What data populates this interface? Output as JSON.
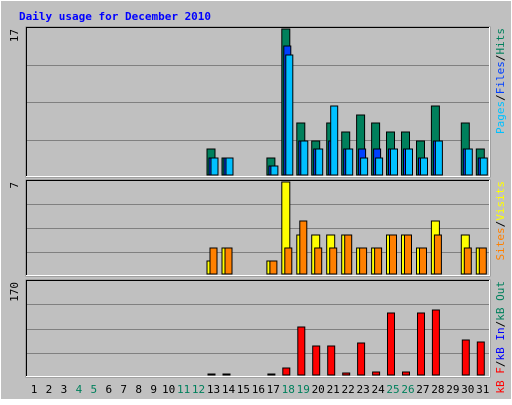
{
  "chart_data": {
    "type": "bar",
    "title": "Daily usage for December 2010",
    "categories": [
      "1",
      "2",
      "3",
      "4",
      "5",
      "6",
      "7",
      "8",
      "9",
      "10",
      "11",
      "12",
      "13",
      "14",
      "15",
      "16",
      "17",
      "18",
      "19",
      "20",
      "21",
      "22",
      "23",
      "24",
      "25",
      "26",
      "27",
      "28",
      "29",
      "30",
      "31"
    ],
    "weekend_days": [
      4,
      5,
      11,
      12,
      18,
      19,
      25,
      26
    ],
    "colors": {
      "background": "#C0C0C0",
      "grid": "#808080",
      "title": "#0000FF",
      "hits": "#00805C",
      "files": "#0040FF",
      "pages": "#00C0FF",
      "visits": "#FFFF00",
      "sites": "#FF8000",
      "kb_in": "#0000FF",
      "kb_out": "#00805C",
      "kb_f": "#FF0000",
      "weekend_label": "#00805C",
      "weekday_label": "#000000"
    },
    "panels": [
      {
        "id": "hits-files-pages",
        "ymax": 17,
        "ymax_label": "17",
        "legend": [
          {
            "text": "Pages",
            "color": "#00C0FF"
          },
          {
            "text": "/",
            "color": "#000000"
          },
          {
            "text": "Files",
            "color": "#0040FF"
          },
          {
            "text": "/",
            "color": "#000000"
          },
          {
            "text": "Hits",
            "color": "#00805C"
          }
        ],
        "series": [
          {
            "name": "Hits",
            "color": "#00805C",
            "values": [
              0,
              0,
              0,
              0,
              0,
              0,
              0,
              0,
              0,
              0,
              0,
              0,
              3,
              2,
              0,
              0,
              2,
              17,
              6,
              4,
              6,
              5,
              7,
              6,
              5,
              5,
              4,
              8,
              0,
              6,
              3
            ]
          },
          {
            "name": "Files",
            "color": "#0040FF",
            "values": [
              0,
              0,
              0,
              0,
              0,
              0,
              0,
              0,
              0,
              0,
              0,
              0,
              2,
              2,
              0,
              0,
              1,
              15,
              4,
              3,
              4,
              3,
              3,
              3,
              3,
              3,
              2,
              4,
              0,
              3,
              2
            ]
          },
          {
            "name": "Pages",
            "color": "#00C0FF",
            "values": [
              0,
              0,
              0,
              0,
              0,
              0,
              0,
              0,
              0,
              0,
              0,
              0,
              2,
              2,
              0,
              0,
              1,
              14,
              4,
              3,
              8,
              3,
              2,
              2,
              3,
              3,
              2,
              4,
              0,
              3,
              2
            ]
          }
        ]
      },
      {
        "id": "visits-sites",
        "ymax": 7,
        "ymax_label": "7",
        "legend": [
          {
            "text": "Sites",
            "color": "#FF8000"
          },
          {
            "text": "/",
            "color": "#000000"
          },
          {
            "text": "Visits",
            "color": "#FFFF00"
          }
        ],
        "series": [
          {
            "name": "Visits",
            "color": "#FFFF00",
            "values": [
              0,
              0,
              0,
              0,
              0,
              0,
              0,
              0,
              0,
              0,
              0,
              0,
              1,
              2,
              0,
              0,
              1,
              7,
              3,
              3,
              3,
              3,
              2,
              2,
              3,
              3,
              2,
              4,
              0,
              3,
              2
            ]
          },
          {
            "name": "Sites",
            "color": "#FF8000",
            "values": [
              0,
              0,
              0,
              0,
              0,
              0,
              0,
              0,
              0,
              0,
              0,
              0,
              2,
              2,
              0,
              0,
              1,
              2,
              4,
              2,
              2,
              3,
              2,
              2,
              3,
              3,
              2,
              3,
              0,
              2,
              2
            ]
          }
        ]
      },
      {
        "id": "kbytes",
        "ymax": 170,
        "ymax_label": "170",
        "legend": [
          {
            "text": "kB F",
            "color": "#FF0000"
          },
          {
            "text": "/",
            "color": "#000000"
          },
          {
            "text": "kB In",
            "color": "#0000FF"
          },
          {
            "text": "/",
            "color": "#000000"
          },
          {
            "text": "kB Out",
            "color": "#00805C"
          }
        ],
        "series": [
          {
            "name": "kB F",
            "color": "#FF0000",
            "values": [
              0,
              0,
              0,
              0,
              0,
              0,
              0,
              0,
              0,
              0,
              0,
              0,
              2,
              2,
              0,
              0,
              2,
              13,
              88,
              53,
              53,
              4,
              58,
              6,
              113,
              6,
              114,
              118,
              0,
              64,
              61
            ]
          }
        ]
      }
    ]
  }
}
